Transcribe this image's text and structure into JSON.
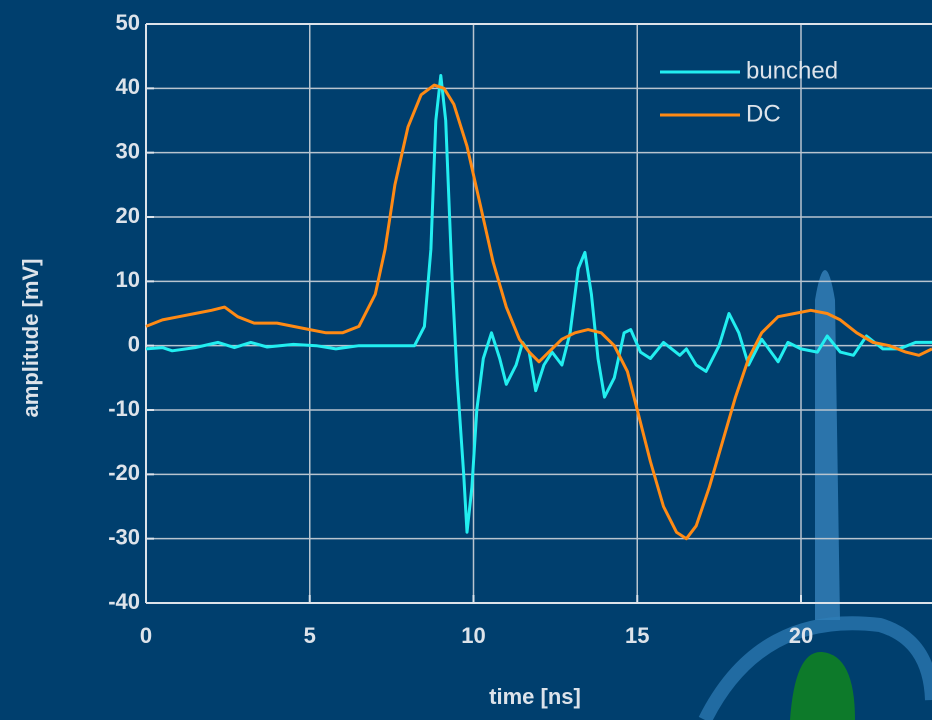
{
  "chart_data": {
    "type": "line",
    "x_label": "time [ns]",
    "y_label": "amplitude [mV]",
    "xlim": [
      0,
      24
    ],
    "ylim": [
      -40,
      50
    ],
    "xticks": [
      0,
      5,
      10,
      15,
      20
    ],
    "yticks": [
      -40,
      -30,
      -20,
      -10,
      0,
      10,
      20,
      30,
      40,
      50
    ],
    "grid": true,
    "legend": "upper right",
    "series": [
      {
        "name": "bunched",
        "color": "#22eef0",
        "x": [
          0,
          0.5,
          0.8,
          1.5,
          2.2,
          2.7,
          3.2,
          3.7,
          4.5,
          5.2,
          5.8,
          6.5,
          7.5,
          8.2,
          8.5,
          8.7,
          8.85,
          9.0,
          9.15,
          9.35,
          9.5,
          9.7,
          9.8,
          9.95,
          10.1,
          10.3,
          10.55,
          10.8,
          11.0,
          11.3,
          11.5,
          11.7,
          11.9,
          12.15,
          12.4,
          12.7,
          12.95,
          13.2,
          13.4,
          13.6,
          13.8,
          14.0,
          14.3,
          14.6,
          14.8,
          15.1,
          15.4,
          15.8,
          16.3,
          16.5,
          16.8,
          17.1,
          17.5,
          17.8,
          18.1,
          18.4,
          18.8,
          19.3,
          19.6,
          20.0,
          20.5,
          20.8,
          21.2,
          21.6,
          22.0,
          22.5,
          23.0,
          23.5,
          24
        ],
        "values": [
          -0.5,
          -0.3,
          -0.8,
          -0.3,
          0.5,
          -0.3,
          0.5,
          -0.2,
          0.2,
          0,
          -0.5,
          0,
          0,
          0,
          3,
          15,
          35,
          42,
          35,
          10,
          -5,
          -20,
          -29,
          -22,
          -10,
          -2,
          2,
          -2,
          -6,
          -3,
          0.5,
          -1,
          -7,
          -3,
          -1,
          -3,
          2,
          12,
          14.5,
          8,
          -2,
          -8,
          -5,
          2,
          2.5,
          -1,
          -2,
          0.5,
          -1.5,
          -0.5,
          -3,
          -4,
          0,
          5,
          2,
          -3,
          1,
          -2.5,
          0.5,
          -0.5,
          -1,
          1.5,
          -1,
          -1.5,
          1.5,
          -0.5,
          -0.5,
          0.5,
          0.5
        ]
      },
      {
        "name": "DC",
        "color": "#ff8a14",
        "x": [
          0,
          0.5,
          1,
          1.5,
          2,
          2.4,
          2.8,
          3.3,
          4,
          4.5,
          5,
          5.5,
          6,
          6.5,
          7,
          7.3,
          7.6,
          8,
          8.4,
          8.8,
          9.1,
          9.4,
          9.8,
          10.2,
          10.6,
          11.0,
          11.4,
          11.7,
          12.0,
          12.3,
          12.7,
          13.1,
          13.5,
          13.9,
          14.3,
          14.7,
          15.0,
          15.4,
          15.8,
          16.2,
          16.5,
          16.8,
          17.2,
          17.6,
          18.0,
          18.4,
          18.8,
          19.3,
          19.8,
          20.3,
          20.8,
          21.2,
          21.7,
          22.2,
          22.7,
          23.2,
          23.6,
          24
        ],
        "values": [
          3,
          4,
          4.5,
          5,
          5.5,
          6,
          4.5,
          3.5,
          3.5,
          3,
          2.5,
          2,
          2,
          3,
          8,
          15,
          25,
          34,
          39,
          40.5,
          40,
          37.5,
          31,
          22,
          13,
          6,
          1,
          -1,
          -2.5,
          -1,
          1,
          2,
          2.5,
          2,
          0,
          -4,
          -10,
          -18,
          -25,
          -29,
          -30,
          -28,
          -22,
          -15,
          -8,
          -2,
          2,
          4.5,
          5,
          5.5,
          5,
          4,
          2,
          0.5,
          0,
          -1,
          -1.5,
          -0.5
        ]
      }
    ]
  }
}
